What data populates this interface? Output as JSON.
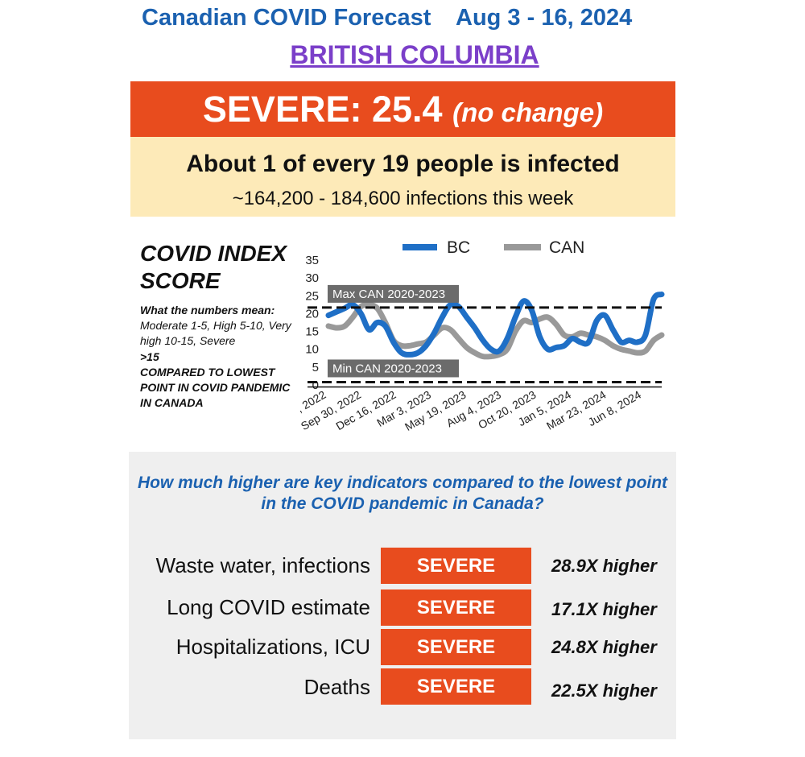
{
  "header": {
    "title_left": "Canadian COVID Forecast",
    "title_right": "Aug 3 - 16, 2024",
    "region": "BRITISH COLUMBIA"
  },
  "severity": {
    "label": "SEVERE: 25.4",
    "change": "(no change)",
    "color": "#e84c1e"
  },
  "infection": {
    "headline": "About 1 of every 19 people is infected",
    "range": "~164,200 - 184,600 infections this week"
  },
  "chart_heading": {
    "title": "COVID INDEX SCORE",
    "meaning_title": "What the numbers mean:",
    "meaning_body": "Moderate 1-5, High 5-10, Very high 10-15, Severe",
    "meaning_tail": ">15",
    "compared": "COMPARED TO LOWEST POINT IN COVID PANDEMIC IN CANADA"
  },
  "chart_data": {
    "type": "line",
    "x_tick_labels": [
      ", 2022",
      "Sep 30, 2022",
      "Dec 16, 2022",
      "Mar 3, 2023",
      "May 19, 2023",
      "Aug 4, 2023",
      "Oct 20, 2023",
      "Jan 5, 2024",
      "Mar 23, 2024",
      "Jun 8, 2024"
    ],
    "y_ticks": [
      0,
      5,
      10,
      15,
      20,
      25,
      30,
      35
    ],
    "ylim": [
      0,
      35
    ],
    "legend_position": "top",
    "series": [
      {
        "name": "BC",
        "color": "#1f6fc6",
        "values": [
          19.5,
          20.5,
          21.5,
          22.5,
          20,
          15.5,
          17.5,
          16.5,
          12,
          9,
          8.5,
          9,
          11,
          14.5,
          19,
          22.5,
          22,
          19,
          16,
          12.5,
          10,
          9.5,
          13,
          19,
          23.5,
          21,
          13.5,
          10,
          10.5,
          11,
          13,
          12,
          12,
          18,
          19.5,
          15.5,
          12,
          12.5,
          12,
          14,
          24,
          25.4
        ]
      },
      {
        "name": "CAN",
        "color": "#999999",
        "values": [
          16.5,
          16,
          16.5,
          19,
          22,
          22.5,
          21.5,
          17.5,
          12.5,
          11,
          11,
          11.5,
          12,
          14,
          16,
          15.5,
          13,
          10.5,
          9,
          8,
          8,
          8.5,
          10,
          15,
          18,
          17.5,
          18.5,
          19,
          17,
          14,
          13.5,
          14.5,
          14,
          13.5,
          12.5,
          11,
          10,
          9.5,
          9,
          9.5,
          12.5,
          14
        ]
      }
    ],
    "reference_lines": [
      {
        "label": "Max CAN 2020-2023",
        "value": 21.7
      },
      {
        "label": "Min CAN 2020-2023",
        "value": 0.8
      }
    ]
  },
  "indicators": {
    "question": "How much higher are key indicators compared to the lowest point in the COVID pandemic in Canada?",
    "rows": [
      {
        "label": "Waste water, infections",
        "level": "SEVERE",
        "value": "28.9X higher"
      },
      {
        "label": "Long COVID estimate",
        "level": "SEVERE",
        "value": "17.1X higher"
      },
      {
        "label": "Hospitalizations, ICU",
        "level": "SEVERE",
        "value": "24.8X higher"
      },
      {
        "label": "Deaths",
        "level": "SEVERE",
        "value": "22.5X higher"
      }
    ]
  }
}
